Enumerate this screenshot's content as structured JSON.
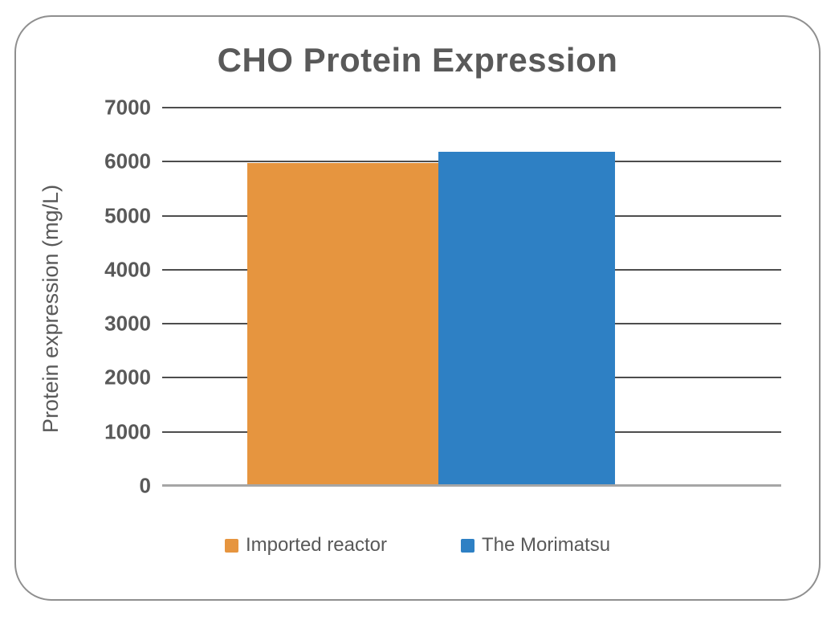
{
  "chart_data": {
    "type": "bar",
    "title": "CHO Protein Expression",
    "xlabel": "",
    "ylabel": "Protein expression (mg/L)",
    "categories": [
      ""
    ],
    "series": [
      {
        "name": "Imported reactor",
        "values": [
          5980
        ],
        "color": "#E6953F"
      },
      {
        "name": "The Morimatsu",
        "values": [
          6190
        ],
        "color": "#2E80C4"
      }
    ],
    "ylim": [
      0,
      7000
    ],
    "yticks": [
      0,
      1000,
      2000,
      3000,
      4000,
      5000,
      6000,
      7000
    ],
    "grid": true,
    "legend_position": "bottom"
  },
  "colors": {
    "text": "#595959",
    "gridline": "#4d4d4d",
    "axis_line": "#a6a6a6",
    "card_border": "#8f8f8f",
    "background": "#ffffff"
  }
}
